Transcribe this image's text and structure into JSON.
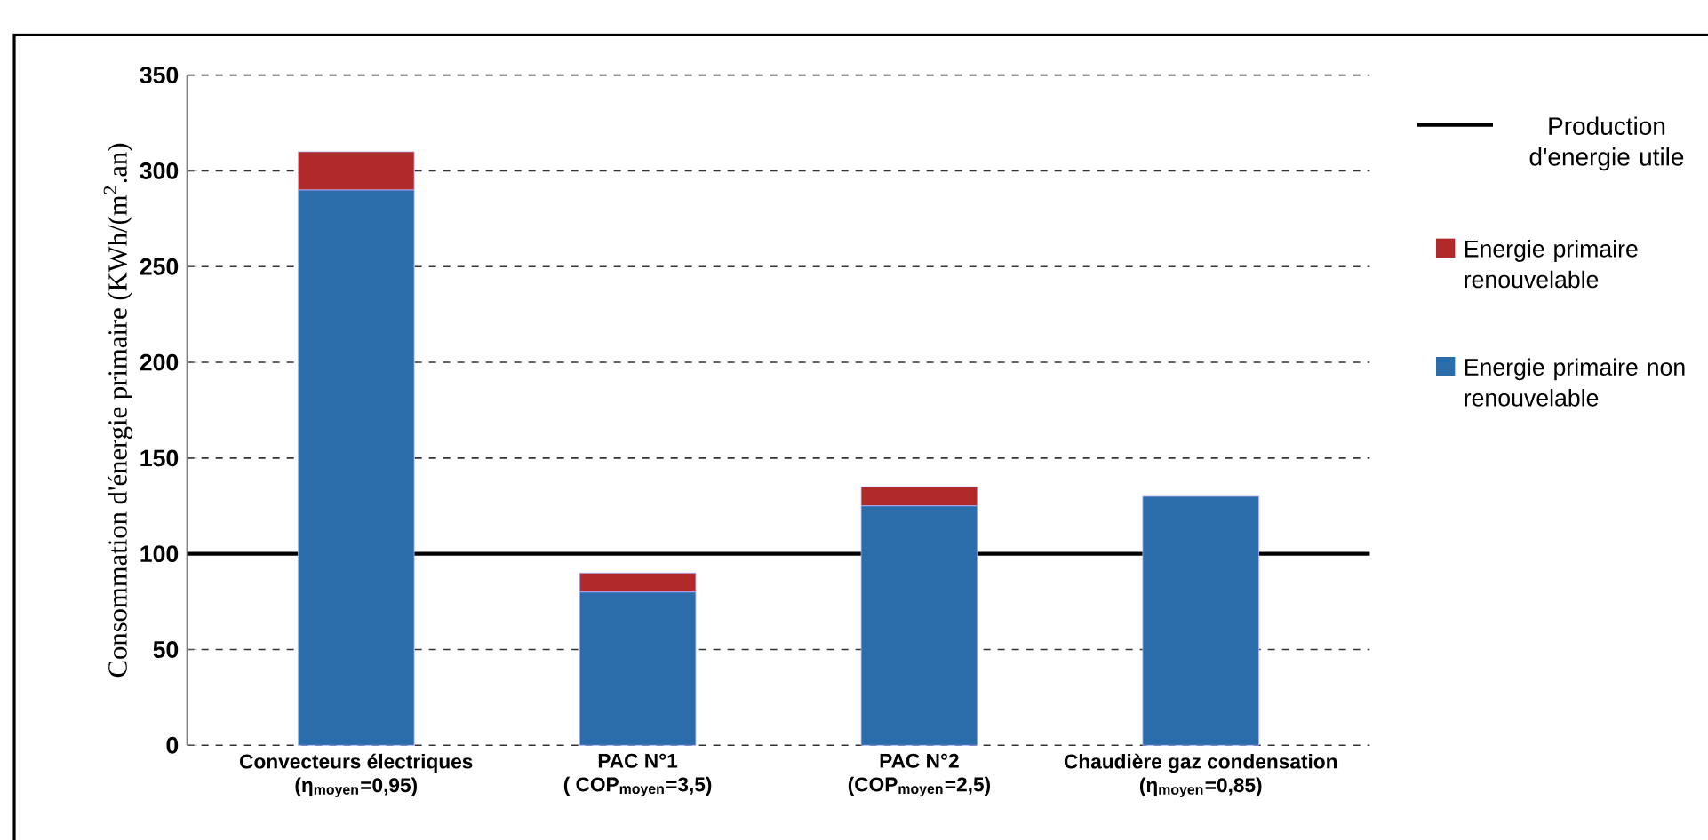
{
  "chart_data": {
    "type": "bar",
    "stacked": true,
    "ylabel": "Consommation d'énergie primaire (KWh/(m$^{2}$.an)",
    "categories": [
      "Convecteurs électriques\n(η$_{moyen}$=0,95)",
      "PAC N°1\n( COP$_{moyen}$=3,5)",
      "PAC N°2\n(COP$_{moyen}$=2,5)",
      "Chaudière gaz condensation\n(η$_{moyen}$=0,85)"
    ],
    "series": [
      {
        "name": "Energie primaire non renouvelable",
        "color": "#2b6cab",
        "values": [
          290,
          80,
          125,
          130
        ]
      },
      {
        "name": "Energie primaire renouvelable",
        "color": "#b02a2a",
        "values": [
          20,
          10,
          10,
          null
        ]
      }
    ],
    "ylim": [
      0,
      350
    ],
    "yticks": [
      0,
      50,
      100,
      150,
      200,
      250,
      300,
      350
    ],
    "ref_lines": [
      {
        "axis": "y",
        "value": 100,
        "label": "Production d'energie utile",
        "color": "#000000"
      }
    ],
    "grid": "y",
    "legend": "right"
  }
}
